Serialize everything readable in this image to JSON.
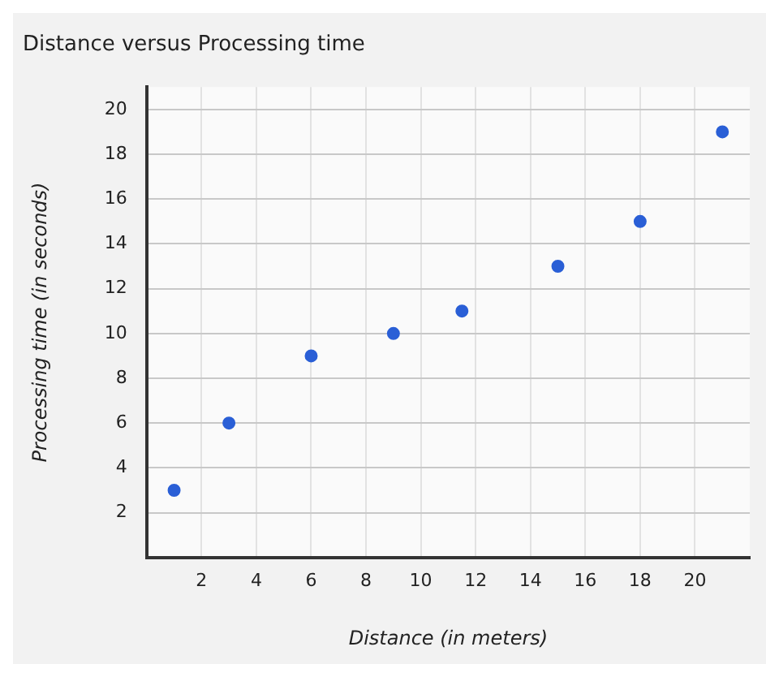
{
  "chart_data": {
    "type": "scatter",
    "title": "Distance versus Processing time",
    "xlabel": "Distance (in meters)",
    "ylabel": "Processing time (in seconds)",
    "x": [
      1,
      3,
      6,
      9,
      11.5,
      15,
      18,
      21
    ],
    "values": [
      3,
      6,
      9,
      10,
      11,
      13,
      15,
      19
    ],
    "color": "#2a5fd6",
    "marker": "circle",
    "xlim": [
      0,
      22
    ],
    "xticks": [
      2,
      4,
      6,
      8,
      10,
      12,
      14,
      16,
      18,
      20
    ],
    "ylim": [
      0,
      21
    ],
    "yticks": [
      2,
      4,
      6,
      8,
      10,
      12,
      14,
      16,
      18,
      20
    ],
    "grid": true,
    "legend": false
  }
}
